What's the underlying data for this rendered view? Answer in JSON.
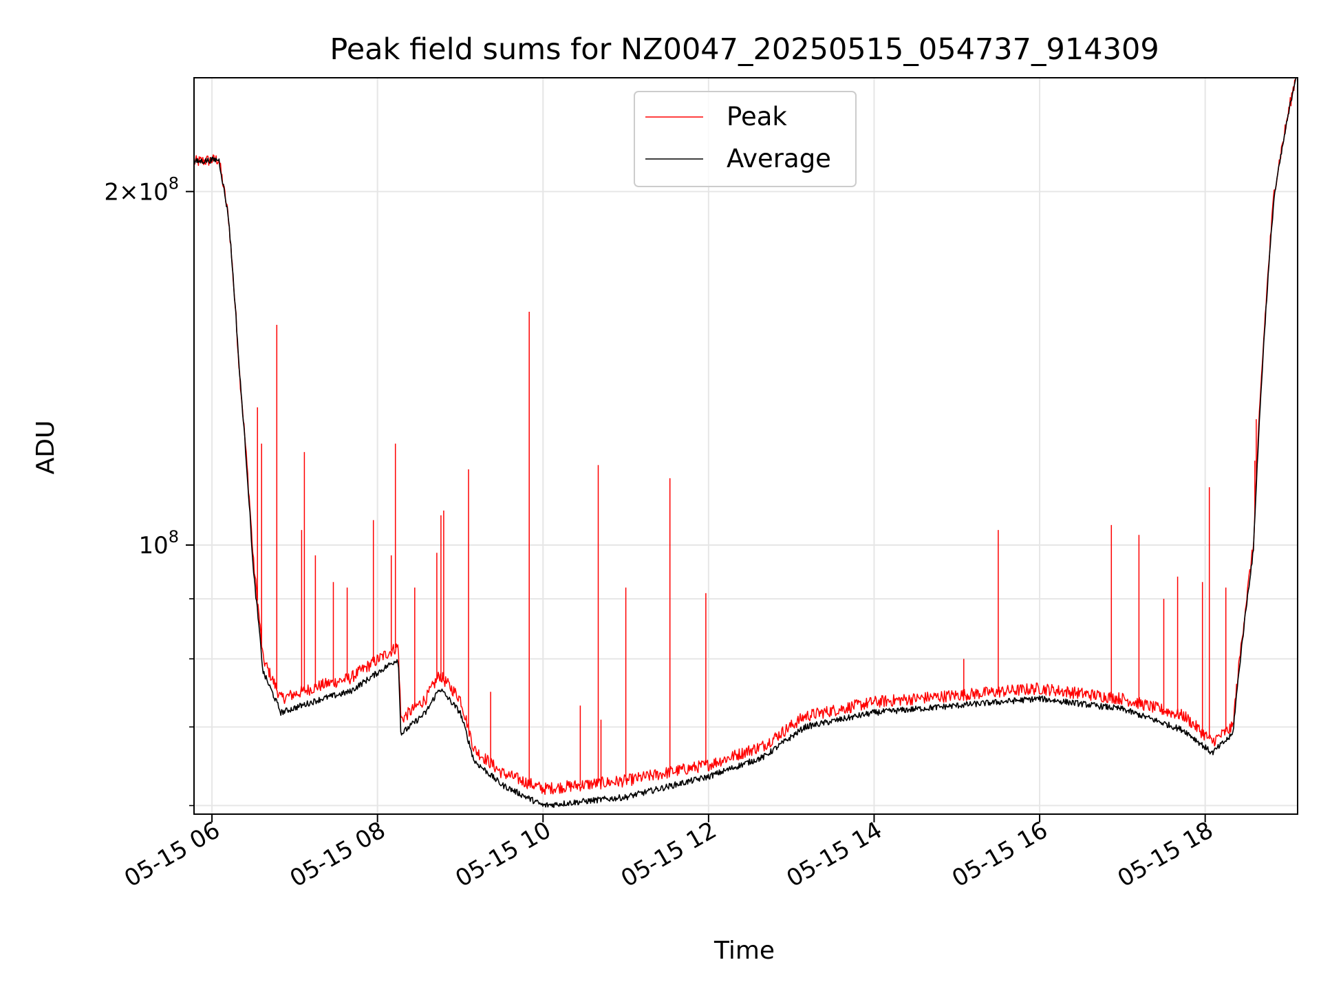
{
  "chart_data": {
    "type": "line",
    "title": "Peak field sums for NZ0047_20250515_054737_914309",
    "xlabel": "Time",
    "ylabel": "ADU",
    "y_scale": "log",
    "ylim": [
      59000000,
      250000000
    ],
    "xlim": [
      "05-15 05:47",
      "05-15 19:07"
    ],
    "grid": true,
    "legend_position": "top-center",
    "x_ticks": [
      "05-15 06",
      "05-15 08",
      "05-15 10",
      "05-15 12",
      "05-15 14",
      "05-15 16",
      "05-15 18"
    ],
    "y_major_ticks": [
      {
        "value": 100000000,
        "base": "10",
        "exp": "8",
        "coef": ""
      },
      {
        "value": 200000000,
        "base": "10",
        "exp": "8",
        "coef": "2"
      }
    ],
    "y_minor_ticks": [
      60000000,
      70000000,
      80000000,
      90000000
    ],
    "series": [
      {
        "name": "Peak",
        "color": "#ff0000",
        "points": [
          [
            "05-15 05:47",
            212000000
          ],
          [
            "05-15 06:05",
            213000000
          ],
          [
            "05-15 06:12",
            190000000
          ],
          [
            "05-15 06:20",
            140000000
          ],
          [
            "05-15 06:30",
            97000000
          ],
          [
            "05-15 06:37",
            80000000
          ],
          [
            "05-15 06:50",
            74000000
          ],
          [
            "05-15 07:20",
            76000000
          ],
          [
            "05-15 07:40",
            77000000
          ],
          [
            "05-15 08:15",
            82000000
          ],
          [
            "05-15 08:17",
            71000000
          ],
          [
            "05-15 08:35",
            74000000
          ],
          [
            "05-15 08:45",
            77500000
          ],
          [
            "05-15 09:00",
            74000000
          ],
          [
            "05-15 09:10",
            67000000
          ],
          [
            "05-15 09:30",
            64000000
          ],
          [
            "05-15 10:00",
            62000000
          ],
          [
            "05-15 11:00",
            63000000
          ],
          [
            "05-15 12:00",
            65000000
          ],
          [
            "05-15 12:40",
            67500000
          ],
          [
            "05-15 13:10",
            71500000
          ],
          [
            "05-15 14:00",
            73500000
          ],
          [
            "05-15 15:00",
            74500000
          ],
          [
            "05-15 16:00",
            75500000
          ],
          [
            "05-15 17:00",
            74000000
          ],
          [
            "05-15 17:45",
            71500000
          ],
          [
            "05-15 18:05",
            68000000
          ],
          [
            "05-15 18:20",
            70000000
          ],
          [
            "05-15 18:35",
            100000000
          ],
          [
            "05-15 18:50",
            200000000
          ],
          [
            "05-15 19:07",
            255000000
          ]
        ],
        "spikes": [
          [
            "05-15 06:33",
            131000000
          ],
          [
            "05-15 06:36",
            122000000
          ],
          [
            "05-15 06:47",
            154000000
          ],
          [
            "05-15 07:07",
            120000000
          ],
          [
            "05-15 07:05",
            103000000
          ],
          [
            "05-15 07:15",
            98000000
          ],
          [
            "05-15 07:28",
            93000000
          ],
          [
            "05-15 07:38",
            92000000
          ],
          [
            "05-15 07:57",
            105000000
          ],
          [
            "05-15 08:13",
            122000000
          ],
          [
            "05-15 08:10",
            98000000
          ],
          [
            "05-15 08:27",
            92000000
          ],
          [
            "05-15 08:43",
            98500000
          ],
          [
            "05-15 08:46",
            106000000
          ],
          [
            "05-15 08:48",
            107000000
          ],
          [
            "05-15 09:06",
            116000000
          ],
          [
            "05-15 09:22",
            75000000
          ],
          [
            "05-15 09:50",
            158000000
          ],
          [
            "05-15 10:27",
            73000000
          ],
          [
            "05-15 10:40",
            117000000
          ],
          [
            "05-15 10:42",
            71000000
          ],
          [
            "05-15 11:00",
            92000000
          ],
          [
            "05-15 11:32",
            114000000
          ],
          [
            "05-15 11:58",
            91000000
          ],
          [
            "05-15 15:05",
            80000000
          ],
          [
            "05-15 15:30",
            103000000
          ],
          [
            "05-15 16:52",
            104000000
          ],
          [
            "05-15 17:12",
            102000000
          ],
          [
            "05-15 17:30",
            90000000
          ],
          [
            "05-15 17:40",
            94000000
          ],
          [
            "05-15 17:58",
            93000000
          ],
          [
            "05-15 18:03",
            112000000
          ],
          [
            "05-15 18:15",
            92000000
          ],
          [
            "05-15 18:36",
            118000000
          ],
          [
            "05-15 18:37",
            128000000
          ]
        ]
      },
      {
        "name": "Average",
        "color": "#000000",
        "points": [
          [
            "05-15 05:47",
            212000000
          ],
          [
            "05-15 06:05",
            213000000
          ],
          [
            "05-15 06:12",
            190000000
          ],
          [
            "05-15 06:20",
            140000000
          ],
          [
            "05-15 06:30",
            95000000
          ],
          [
            "05-15 06:37",
            78000000
          ],
          [
            "05-15 06:50",
            72000000
          ],
          [
            "05-15 07:20",
            74000000
          ],
          [
            "05-15 07:40",
            75000000
          ],
          [
            "05-15 08:15",
            80000000
          ],
          [
            "05-15 08:17",
            69000000
          ],
          [
            "05-15 08:35",
            72000000
          ],
          [
            "05-15 08:45",
            75500000
          ],
          [
            "05-15 09:00",
            72000000
          ],
          [
            "05-15 09:10",
            65500000
          ],
          [
            "05-15 09:30",
            62500000
          ],
          [
            "05-15 10:00",
            60000000
          ],
          [
            "05-15 11:00",
            61000000
          ],
          [
            "05-15 12:00",
            63500000
          ],
          [
            "05-15 12:40",
            66000000
          ],
          [
            "05-15 13:10",
            70000000
          ],
          [
            "05-15 14:00",
            72000000
          ],
          [
            "05-15 15:00",
            73000000
          ],
          [
            "05-15 16:00",
            74000000
          ],
          [
            "05-15 17:00",
            72500000
          ],
          [
            "05-15 17:45",
            69500000
          ],
          [
            "05-15 18:05",
            66500000
          ],
          [
            "05-15 18:20",
            69000000
          ],
          [
            "05-15 18:35",
            99000000
          ],
          [
            "05-15 18:50",
            198000000
          ],
          [
            "05-15 19:07",
            255000000
          ]
        ]
      }
    ]
  }
}
